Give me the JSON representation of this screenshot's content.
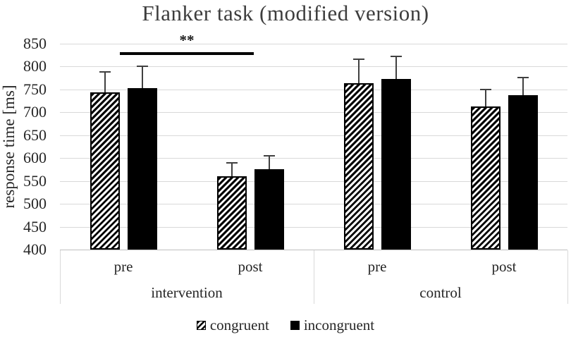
{
  "chart_data": {
    "type": "bar",
    "title": "Flanker task (modified version)",
    "ylabel": "response time [ms]",
    "ylim": [
      400,
      850
    ],
    "ytick_interval": 50,
    "grid": true,
    "legend_position": "bottom",
    "x_conditions": [
      "pre",
      "post",
      "pre",
      "post"
    ],
    "x_groups": [
      {
        "label": "intervention",
        "from": 0,
        "to": 1
      },
      {
        "label": "control",
        "from": 2,
        "to": 3
      }
    ],
    "series": [
      {
        "name": "congruent",
        "pattern": "diagonal-hatch",
        "values": [
          743,
          561,
          764,
          713
        ],
        "errors_plus": [
          45,
          29,
          52,
          37
        ]
      },
      {
        "name": "incongruent",
        "pattern": "solid-black",
        "values": [
          753,
          575,
          773,
          737
        ],
        "errors_plus": [
          47,
          30,
          49,
          39
        ]
      }
    ],
    "annotations": [
      {
        "type": "significance-bar",
        "label": "**",
        "from_category": 0,
        "to_category": 1,
        "y_value": 832
      }
    ],
    "colors": {
      "bar_black": "#000000",
      "hatch_background": "#ffffff",
      "gridline": "#d9d9d9",
      "axis_line": "#bfbfbf",
      "error_bar": "#404040",
      "text": "#262626",
      "title_text": "#3d3d3d",
      "significance": "#000000"
    }
  }
}
